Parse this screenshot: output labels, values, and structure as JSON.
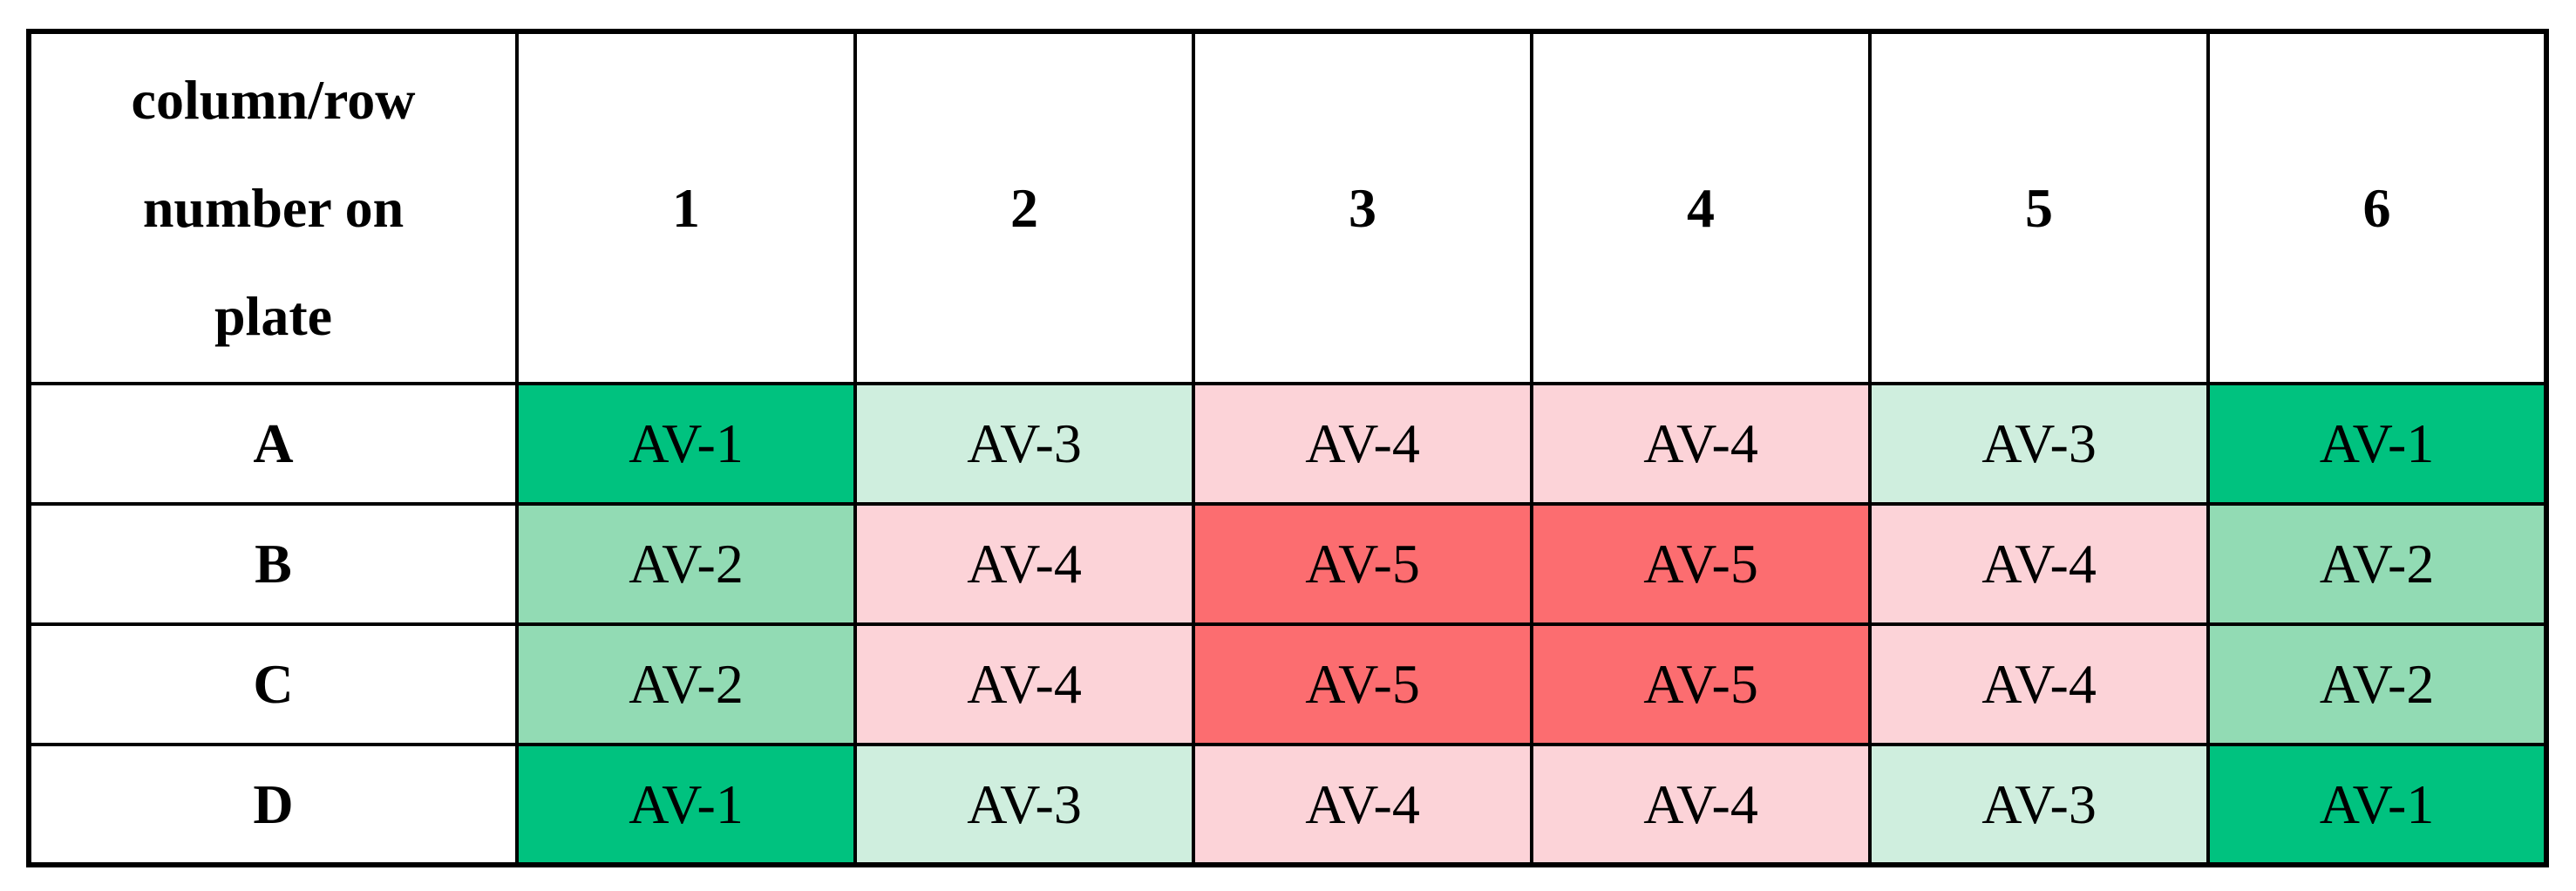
{
  "table": {
    "corner_label": "column/row number on plate",
    "corner_lines": [
      "column/row",
      "number on",
      "plate"
    ],
    "columns": [
      "1",
      "2",
      "3",
      "4",
      "5",
      "6"
    ],
    "rows": [
      {
        "label": "A",
        "cells": [
          "AV-1",
          "AV-3",
          "AV-4",
          "AV-4",
          "AV-3",
          "AV-1"
        ]
      },
      {
        "label": "B",
        "cells": [
          "AV-2",
          "AV-4",
          "AV-5",
          "AV-5",
          "AV-4",
          "AV-2"
        ]
      },
      {
        "label": "C",
        "cells": [
          "AV-2",
          "AV-4",
          "AV-5",
          "AV-5",
          "AV-4",
          "AV-2"
        ]
      },
      {
        "label": "D",
        "cells": [
          "AV-1",
          "AV-3",
          "AV-4",
          "AV-4",
          "AV-3",
          "AV-1"
        ]
      }
    ],
    "value_colors": {
      "AV-1": "#00C27F",
      "AV-2": "#92DBB4",
      "AV-3": "#CFEEDE",
      "AV-4": "#FCD3D8",
      "AV-5": "#FC6D70"
    },
    "border_color": "#000000",
    "text_color": "#000000",
    "background_color": "#FFFFFF"
  },
  "chart_data": {
    "type": "table",
    "title": "",
    "corner_header": "column/row number on plate",
    "columns": [
      "1",
      "2",
      "3",
      "4",
      "5",
      "6"
    ],
    "row_labels": [
      "A",
      "B",
      "C",
      "D"
    ],
    "values": [
      [
        "AV-1",
        "AV-3",
        "AV-4",
        "AV-4",
        "AV-3",
        "AV-1"
      ],
      [
        "AV-2",
        "AV-4",
        "AV-5",
        "AV-5",
        "AV-4",
        "AV-2"
      ],
      [
        "AV-2",
        "AV-4",
        "AV-5",
        "AV-5",
        "AV-4",
        "AV-2"
      ],
      [
        "AV-1",
        "AV-3",
        "AV-4",
        "AV-4",
        "AV-3",
        "AV-1"
      ]
    ],
    "color_scale": {
      "AV-1": "#00C27F",
      "AV-2": "#92DBB4",
      "AV-3": "#CFEEDE",
      "AV-4": "#FCD3D8",
      "AV-5": "#FC6D70"
    },
    "layout": "plate grid heatmap, green (low AV) to red (high AV), symmetric about plate center"
  }
}
